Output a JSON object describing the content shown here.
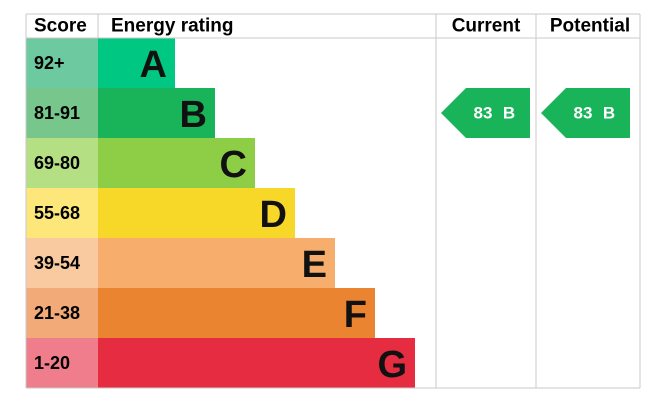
{
  "header": {
    "score": "Score",
    "rating": "Energy rating",
    "current": "Current",
    "potential": "Potential"
  },
  "rows": [
    {
      "score": "92+",
      "letter": "A",
      "score_color": "#6cc9a0",
      "color": "#00c781"
    },
    {
      "score": "81-91",
      "letter": "B",
      "score_color": "#77c78c",
      "color": "#19b459"
    },
    {
      "score": "69-80",
      "letter": "C",
      "score_color": "#b4df82",
      "color": "#8dce46"
    },
    {
      "score": "55-68",
      "letter": "D",
      "score_color": "#fde77a",
      "color": "#f7d728"
    },
    {
      "score": "39-54",
      "letter": "E",
      "score_color": "#f9c9a0",
      "color": "#f7ad6b"
    },
    {
      "score": "21-38",
      "letter": "F",
      "score_color": "#f2ab78",
      "color": "#eb8431"
    },
    {
      "score": "1-20",
      "letter": "G",
      "score_color": "#f07d8c",
      "color": "#e52c41"
    }
  ],
  "current": {
    "score": 83,
    "rating": "B"
  },
  "potential": {
    "score": 83,
    "rating": "B"
  }
}
